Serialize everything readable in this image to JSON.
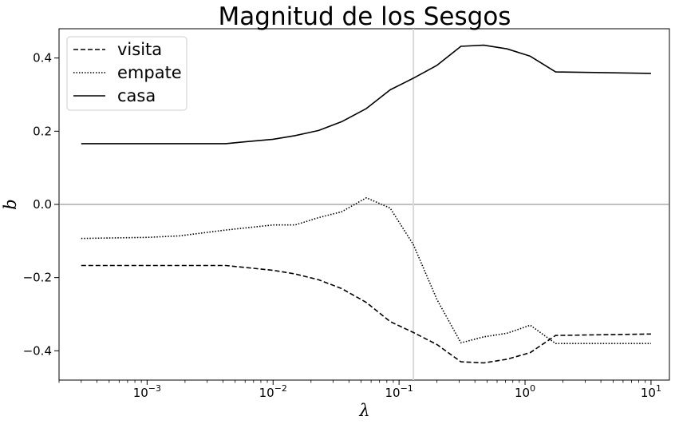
{
  "chart_data": {
    "type": "line",
    "title": "Magnitud de los Sesgos",
    "xlabel": "λ",
    "ylabel": "b",
    "xscale": "log",
    "xlim": [
      0.0002,
      14
    ],
    "ylim": [
      -0.48,
      0.48
    ],
    "grid": false,
    "legend_position": "top-left",
    "x_ticks": [
      {
        "value": 0.001,
        "base": "10",
        "exp": "−3"
      },
      {
        "value": 0.01,
        "base": "10",
        "exp": "−2"
      },
      {
        "value": 0.1,
        "base": "10",
        "exp": "−1"
      },
      {
        "value": 1,
        "base": "10",
        "exp": "0"
      },
      {
        "value": 10,
        "base": "10",
        "exp": "1"
      }
    ],
    "y_ticks": [
      {
        "value": -0.4,
        "label": "−0.4"
      },
      {
        "value": -0.2,
        "label": "−0.2"
      },
      {
        "value": 0.0,
        "label": "0.0"
      },
      {
        "value": 0.2,
        "label": "0.2"
      },
      {
        "value": 0.4,
        "label": "0.4"
      }
    ],
    "reference_lines": {
      "hline_y": 0.0,
      "vline_x": 0.13
    },
    "series": [
      {
        "name": "visita",
        "style": "dashed",
        "x": [
          0.0003,
          0.0042,
          0.01,
          0.015,
          0.023,
          0.035,
          0.055,
          0.085,
          0.13,
          0.2,
          0.31,
          0.47,
          0.72,
          1.1,
          1.75,
          10
        ],
        "y": [
          -0.167,
          -0.167,
          -0.18,
          -0.19,
          -0.206,
          -0.23,
          -0.268,
          -0.32,
          -0.35,
          -0.383,
          -0.43,
          -0.433,
          -0.423,
          -0.405,
          -0.358,
          -0.354
        ]
      },
      {
        "name": "empate",
        "style": "dotted",
        "x": [
          0.0003,
          0.001,
          0.0018,
          0.0042,
          0.01,
          0.015,
          0.023,
          0.035,
          0.055,
          0.085,
          0.13,
          0.2,
          0.31,
          0.47,
          0.72,
          1.1,
          1.75,
          10
        ],
        "y": [
          -0.093,
          -0.09,
          -0.086,
          -0.07,
          -0.056,
          -0.056,
          -0.036,
          -0.02,
          0.018,
          -0.01,
          -0.11,
          -0.26,
          -0.378,
          -0.362,
          -0.352,
          -0.33,
          -0.38,
          -0.38
        ]
      },
      {
        "name": "casa",
        "style": "solid",
        "x": [
          0.0003,
          0.0042,
          0.006,
          0.01,
          0.015,
          0.023,
          0.035,
          0.055,
          0.085,
          0.13,
          0.2,
          0.31,
          0.47,
          0.72,
          1.1,
          1.75,
          10
        ],
        "y": [
          0.166,
          0.166,
          0.171,
          0.178,
          0.188,
          0.202,
          0.226,
          0.262,
          0.313,
          0.345,
          0.38,
          0.432,
          0.435,
          0.425,
          0.405,
          0.362,
          0.358
        ]
      }
    ]
  }
}
